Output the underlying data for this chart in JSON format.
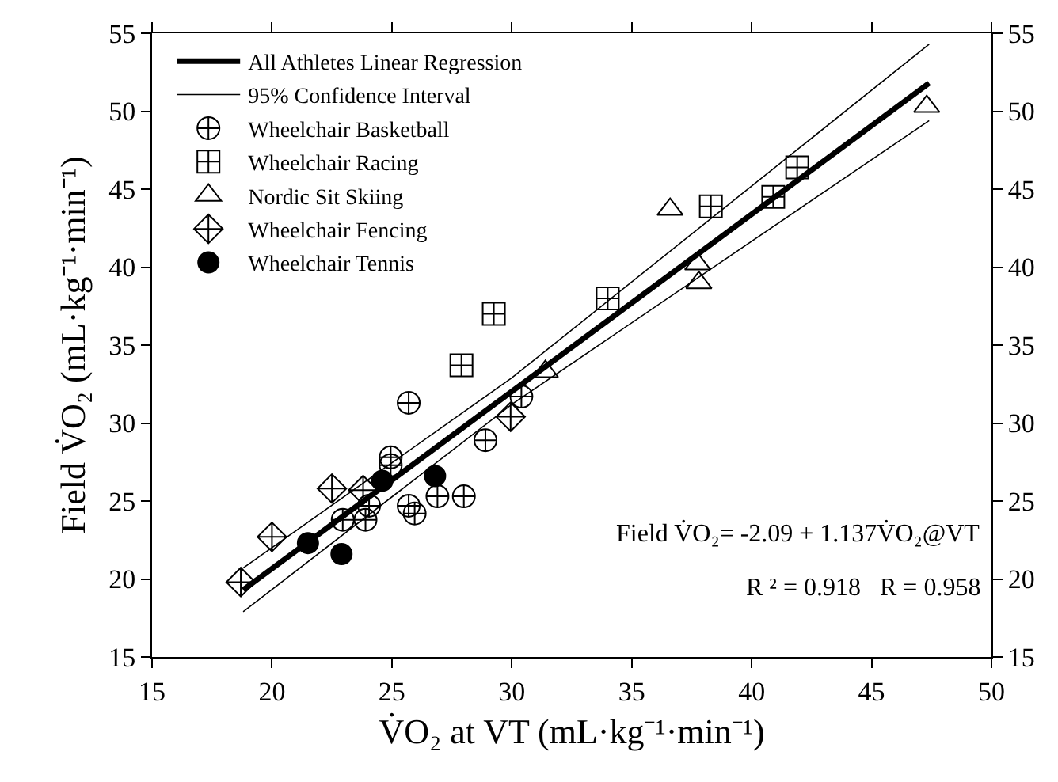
{
  "chart_data": {
    "type": "scatter",
    "xlabel": "V̇O₂ at VT (mL·kg⁻¹·min⁻¹)",
    "ylabel": "Field V̇O₂ (mL·kg⁻¹·min⁻¹)",
    "xlim": [
      15,
      50
    ],
    "xticks": [
      15,
      20,
      25,
      30,
      35,
      40,
      45,
      50
    ],
    "ylim": [
      15,
      55
    ],
    "yticks": [
      15,
      20,
      25,
      30,
      35,
      40,
      45,
      50,
      55
    ],
    "y2lim": [
      15,
      55
    ],
    "y2ticks": [
      15,
      20,
      25,
      30,
      35,
      40,
      45,
      50,
      55
    ],
    "legend": "top left",
    "annotations": [
      "Field V̇O₂= -2.09 + 1.137V̇O₂@VT",
      "R ² = 0.918   R = 0.958"
    ],
    "series": [
      {
        "name": "All Athletes Linear Regression",
        "type": "line",
        "color": "#000000",
        "marker": "none",
        "line_style": "solid",
        "x": [
          18.8,
          47.4
        ],
        "values": [
          19.3,
          51.8
        ]
      },
      {
        "name": "95% Confidence Interval",
        "type": "line",
        "color": "#000000",
        "marker": "none",
        "line_style": "solid",
        "x": [
          18.8,
          30,
          47.4
        ],
        "values": [
          20.7,
          32.9,
          54.3
        ]
      },
      {
        "type": "line",
        "color": "#000000",
        "marker": "none",
        "line_style": "solid",
        "x": [
          18.8,
          30,
          47.4
        ],
        "values": [
          17.9,
          31.2,
          49.4
        ]
      },
      {
        "name": "Wheelchair Basketball",
        "color": "#000000",
        "x": [
          25.7,
          24.95,
          24.95,
          28.9,
          30.4,
          22.95,
          23.9,
          24.05,
          25.7,
          25.95,
          26.9,
          28.0
        ],
        "values": [
          31.3,
          27.8,
          27.3,
          28.9,
          31.7,
          23.8,
          23.8,
          24.7,
          24.7,
          24.2,
          25.3,
          25.3
        ]
      },
      {
        "name": "Wheelchair Racing",
        "color": "#000000",
        "x": [
          27.9,
          29.25,
          34.0,
          38.3,
          40.9,
          41.9
        ],
        "values": [
          33.7,
          37.0,
          38.0,
          43.9,
          44.5,
          46.4
        ]
      },
      {
        "name": "Nordic Sit Skiing",
        "color": "#000000",
        "x": [
          31.4,
          36.6,
          37.75,
          37.8,
          47.3
        ],
        "values": [
          33.3,
          43.7,
          40.2,
          39.0,
          50.3
        ]
      },
      {
        "name": "Wheelchair Fencing",
        "color": "#000000",
        "x": [
          18.7,
          20.0,
          22.5,
          23.8,
          29.95
        ],
        "values": [
          19.8,
          22.7,
          25.8,
          25.7,
          30.4
        ]
      },
      {
        "name": "Wheelchair Tennis",
        "color": "#000000",
        "x": [
          21.5,
          22.9,
          24.6,
          26.8
        ],
        "values": [
          22.3,
          21.6,
          26.3,
          26.6
        ]
      }
    ]
  }
}
